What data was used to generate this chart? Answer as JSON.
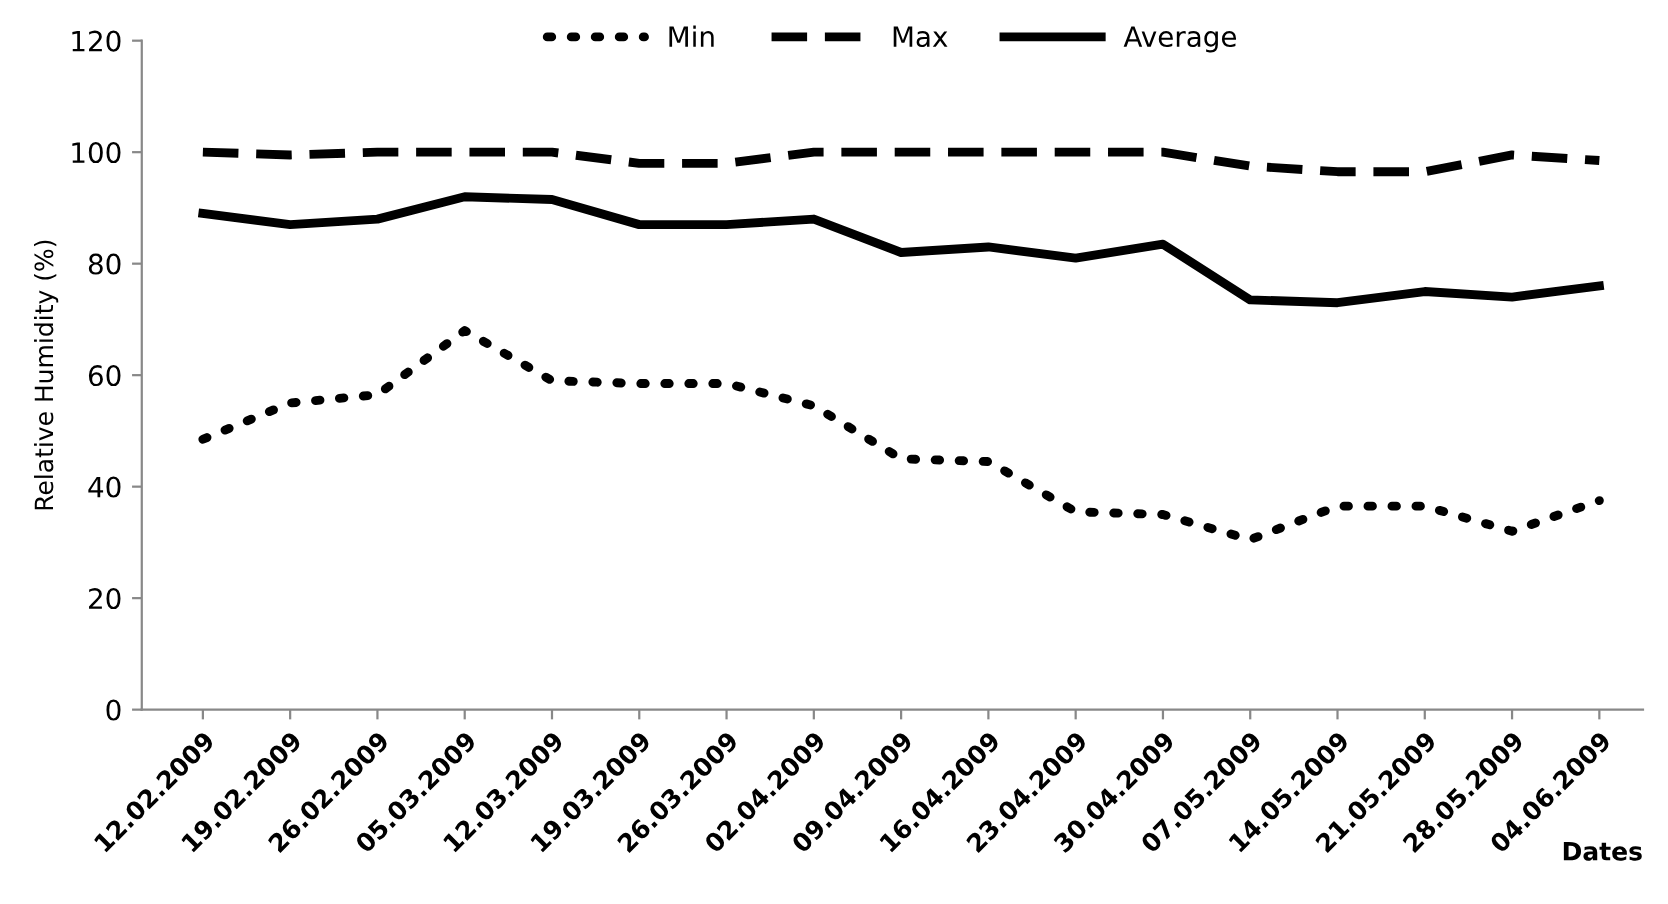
{
  "chart_data": {
    "type": "line",
    "xlabel": "Dates",
    "ylabel": "Relative Humidity (%)",
    "categories": [
      "12.02.2009",
      "19.02.2009",
      "26.02.2009",
      "05.03.2009",
      "12.03.2009",
      "19.03.2009",
      "26.03.2009",
      "02.04.2009",
      "09.04.2009",
      "16.04.2009",
      "23.04.2009",
      "30.04.2009",
      "07.05.2009",
      "14.05.2009",
      "21.05.2009",
      "28.05.2009",
      "04.06.2009"
    ],
    "series": [
      {
        "name": "Min",
        "color": "#000000",
        "line_style": "dotted",
        "values": [
          48.5,
          55,
          56.5,
          68,
          59,
          58.5,
          58.5,
          54.5,
          45,
          44.5,
          35.5,
          35,
          30.5,
          36.5,
          36.5,
          32,
          37.5
        ]
      },
      {
        "name": "Max",
        "color": "#000000",
        "line_style": "dashed",
        "values": [
          100,
          99.5,
          100,
          100,
          100,
          98,
          98,
          100,
          100,
          100,
          100,
          100,
          97.5,
          96.5,
          96.5,
          99.5,
          98.5
        ]
      },
      {
        "name": "Average",
        "color": "#000000",
        "line_style": "solid",
        "values": [
          89,
          87,
          88,
          92,
          91.5,
          87,
          87,
          88,
          82,
          83,
          81,
          83.5,
          73.5,
          73,
          75,
          74,
          76
        ]
      }
    ],
    "ylim": [
      0,
      120
    ],
    "yticks": [
      0,
      20,
      40,
      60,
      80,
      100,
      120
    ],
    "legend": "top",
    "grid": false
  }
}
